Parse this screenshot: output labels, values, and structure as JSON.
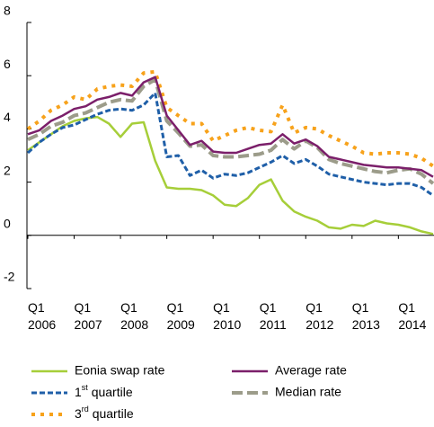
{
  "chart_data": {
    "type": "line",
    "categories": [
      "Q1 2006",
      null,
      null,
      null,
      "Q1 2007",
      null,
      null,
      null,
      "Q1 2008",
      null,
      null,
      null,
      "Q1 2009",
      null,
      null,
      null,
      "Q1 2010",
      null,
      null,
      null,
      "Q1 2011",
      null,
      null,
      null,
      "Q1 2012",
      null,
      null,
      null,
      "Q1 2013",
      null,
      null,
      null,
      "Q1 2014",
      null,
      null,
      null
    ],
    "ylim": [
      -2,
      8
    ],
    "yticks": [
      -2,
      0,
      2,
      4,
      6,
      8
    ],
    "series": [
      {
        "name": "Eonia swap rate",
        "color": "#a6ce39",
        "style": "solid",
        "values": [
          3.2,
          3.5,
          3.8,
          4.1,
          4.3,
          4.4,
          4.45,
          4.2,
          3.7,
          4.2,
          4.25,
          2.8,
          1.8,
          1.75,
          1.75,
          1.7,
          1.5,
          1.15,
          1.1,
          1.4,
          1.9,
          2.1,
          1.3,
          0.9,
          0.7,
          0.55,
          0.3,
          0.25,
          0.4,
          0.35,
          0.55,
          0.45,
          0.4,
          0.3,
          0.15,
          0.05
        ]
      },
      {
        "name": "Average rate",
        "color": "#7b1f6a",
        "style": "solid",
        "values": [
          3.8,
          3.95,
          4.3,
          4.5,
          4.75,
          4.85,
          5.1,
          5.2,
          5.35,
          5.25,
          5.75,
          5.95,
          4.5,
          3.95,
          3.4,
          3.55,
          3.15,
          3.1,
          3.1,
          3.25,
          3.4,
          3.45,
          3.8,
          3.45,
          3.6,
          3.35,
          2.95,
          2.85,
          2.75,
          2.65,
          2.6,
          2.55,
          2.55,
          2.5,
          2.45,
          2.2
        ]
      },
      {
        "name": "1st quartile",
        "color": "#1f5fa8",
        "style": "dashed",
        "values": [
          3.1,
          3.5,
          3.8,
          4.05,
          4.15,
          4.35,
          4.55,
          4.7,
          4.75,
          4.7,
          4.9,
          5.35,
          2.95,
          3.0,
          2.25,
          2.45,
          2.15,
          2.3,
          2.25,
          2.35,
          2.55,
          2.75,
          3.0,
          2.7,
          2.85,
          2.6,
          2.3,
          2.2,
          2.1,
          2.0,
          1.95,
          1.9,
          1.95,
          1.95,
          1.8,
          1.5
        ]
      },
      {
        "name": "Median rate",
        "color": "#9c9c8a",
        "style": "longdash",
        "values": [
          3.6,
          3.8,
          4.1,
          4.25,
          4.5,
          4.6,
          4.8,
          5.0,
          5.1,
          5.05,
          5.6,
          5.85,
          4.3,
          3.85,
          3.35,
          3.4,
          3.0,
          2.95,
          2.95,
          3.0,
          3.05,
          3.2,
          3.6,
          3.25,
          3.55,
          3.3,
          2.85,
          2.7,
          2.6,
          2.5,
          2.4,
          2.35,
          2.45,
          2.5,
          2.3,
          1.95
        ]
      },
      {
        "name": "3rd quartile",
        "color": "#f7a21b",
        "style": "dotted",
        "values": [
          4.0,
          4.3,
          4.7,
          4.9,
          5.2,
          5.1,
          5.5,
          5.6,
          5.65,
          5.6,
          6.1,
          6.15,
          4.8,
          4.5,
          4.2,
          4.2,
          3.55,
          3.75,
          3.95,
          4.05,
          3.95,
          3.9,
          4.9,
          3.85,
          4.05,
          4.0,
          3.75,
          3.55,
          3.35,
          3.1,
          3.05,
          3.1,
          3.1,
          3.05,
          2.9,
          2.6
        ]
      }
    ]
  }
}
